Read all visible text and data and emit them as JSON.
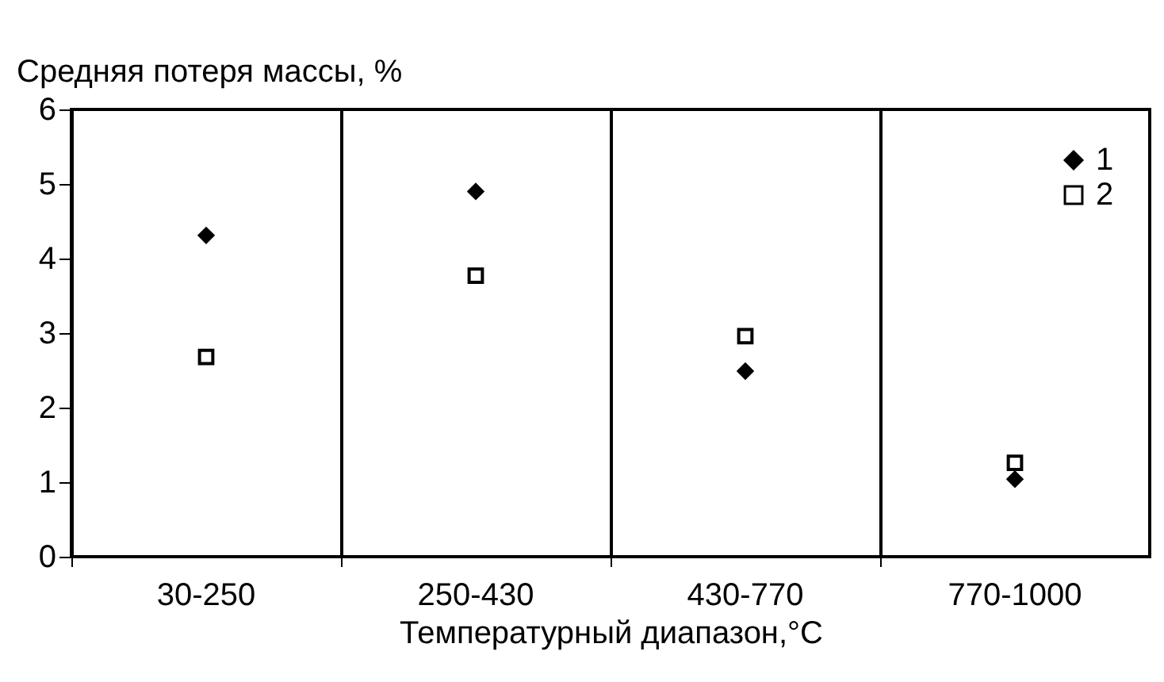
{
  "chart_data": {
    "type": "scatter",
    "ylabel": "Средняя потеря массы, %",
    "xlabel": "Температурный диапазон,°C",
    "categories": [
      "30-250",
      "250-430",
      "430-770",
      "770-1000"
    ],
    "series": [
      {
        "name": "1",
        "color": "#000000",
        "marker": "diamond",
        "values": [
          4.31,
          4.9,
          2.49,
          1.04
        ]
      },
      {
        "name": "2",
        "color": "#000000",
        "marker": "square",
        "values": [
          2.68,
          3.77,
          2.96,
          1.26
        ]
      }
    ],
    "ylim": [
      0,
      6
    ],
    "yticks": [
      0,
      1,
      2,
      3,
      4,
      5,
      6
    ],
    "grid": "x",
    "legend": "top right"
  }
}
